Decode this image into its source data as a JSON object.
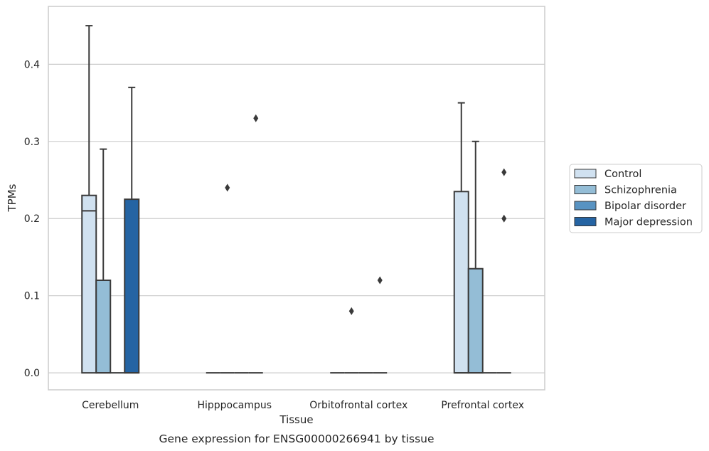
{
  "chart_data": {
    "type": "box",
    "title": "",
    "caption": "Gene expression for ENSG00000266941 by tissue",
    "xlabel": "Tissue",
    "ylabel": "TPMs",
    "ylim": [
      -0.022,
      0.475
    ],
    "yticks": [
      0.0,
      0.1,
      0.2,
      0.3,
      0.4
    ],
    "ytick_labels": [
      "0.0",
      "0.1",
      "0.2",
      "0.3",
      "0.4"
    ],
    "grid": "horizontal",
    "legend_position": "right",
    "categories": [
      "Cerebellum",
      "Hipppocampus",
      "Orbitofrontal cortex",
      "Prefrontal cortex"
    ],
    "series": [
      {
        "name": "Control",
        "color": "#d0e1f0",
        "boxes": [
          {
            "q1": 0.0,
            "median": 0.21,
            "q3": 0.23,
            "whisker_low": 0.0,
            "whisker_high": 0.45,
            "outliers": []
          },
          {
            "q1": 0.0,
            "median": 0.0,
            "q3": 0.0,
            "whisker_low": 0.0,
            "whisker_high": 0.0,
            "outliers": []
          },
          {
            "q1": 0.0,
            "median": 0.0,
            "q3": 0.0,
            "whisker_low": 0.0,
            "whisker_high": 0.0,
            "outliers": []
          },
          {
            "q1": 0.0,
            "median": 0.0,
            "q3": 0.235,
            "whisker_low": 0.0,
            "whisker_high": 0.35,
            "outliers": []
          }
        ]
      },
      {
        "name": "Schizophrenia",
        "color": "#94bdd6",
        "boxes": [
          {
            "q1": 0.0,
            "median": 0.0,
            "q3": 0.12,
            "whisker_low": 0.0,
            "whisker_high": 0.29,
            "outliers": []
          },
          {
            "q1": 0.0,
            "median": 0.0,
            "q3": 0.0,
            "whisker_low": 0.0,
            "whisker_high": 0.0,
            "outliers": [
              0.24
            ]
          },
          {
            "q1": 0.0,
            "median": 0.0,
            "q3": 0.0,
            "whisker_low": 0.0,
            "whisker_high": 0.0,
            "outliers": [
              0.08
            ]
          },
          {
            "q1": 0.0,
            "median": 0.0,
            "q3": 0.135,
            "whisker_low": 0.0,
            "whisker_high": 0.3,
            "outliers": []
          }
        ]
      },
      {
        "name": "Bipolar disorder",
        "color": "#5893c2",
        "boxes": [
          {
            "q1": 0.0,
            "median": 0.0,
            "q3": 0.0,
            "whisker_low": 0.0,
            "whisker_high": 0.0,
            "outliers": []
          },
          {
            "q1": 0.0,
            "median": 0.0,
            "q3": 0.0,
            "whisker_low": 0.0,
            "whisker_high": 0.0,
            "outliers": []
          },
          {
            "q1": 0.0,
            "median": 0.0,
            "q3": 0.0,
            "whisker_low": 0.0,
            "whisker_high": 0.0,
            "outliers": []
          },
          {
            "q1": 0.0,
            "median": 0.0,
            "q3": 0.0,
            "whisker_low": 0.0,
            "whisker_high": 0.0,
            "outliers": []
          }
        ]
      },
      {
        "name": "Major depression",
        "color": "#2564a3",
        "boxes": [
          {
            "q1": 0.0,
            "median": 0.0,
            "q3": 0.225,
            "whisker_low": 0.0,
            "whisker_high": 0.37,
            "outliers": []
          },
          {
            "q1": 0.0,
            "median": 0.0,
            "q3": 0.0,
            "whisker_low": 0.0,
            "whisker_high": 0.0,
            "outliers": [
              0.33
            ]
          },
          {
            "q1": 0.0,
            "median": 0.0,
            "q3": 0.0,
            "whisker_low": 0.0,
            "whisker_high": 0.0,
            "outliers": [
              0.12
            ]
          },
          {
            "q1": 0.0,
            "median": 0.0,
            "q3": 0.0,
            "whisker_low": 0.0,
            "whisker_high": 0.0,
            "outliers": [
              0.2,
              0.26
            ]
          }
        ]
      }
    ]
  }
}
